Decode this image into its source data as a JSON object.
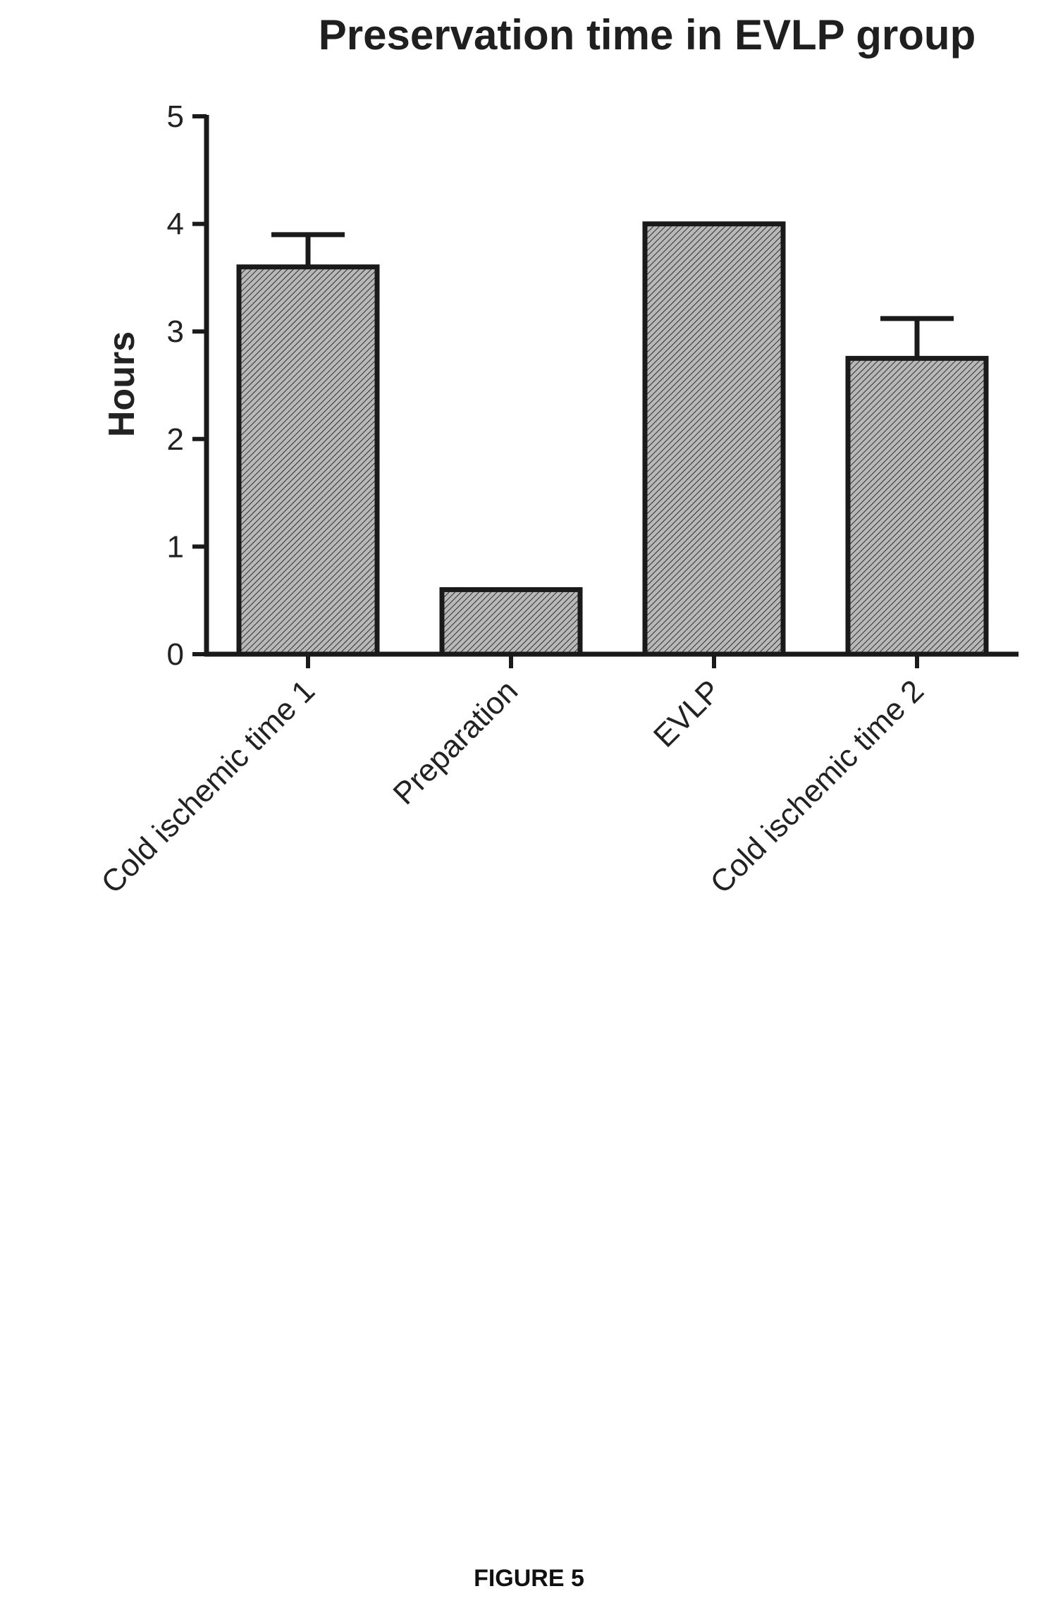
{
  "figure_caption": "FIGURE 5",
  "chart_data": {
    "type": "bar",
    "title": "Preservation time in  EVLP group",
    "ylabel": "Hours",
    "xlabel": "",
    "ylim": [
      0,
      5
    ],
    "yticks": [
      "0",
      "1",
      "2",
      "3",
      "4",
      "5"
    ],
    "categories": [
      "Cold ischemic time 1",
      "Preparation",
      "EVLP",
      "Cold ischemic time 2"
    ],
    "values": [
      3.6,
      0.6,
      4.0,
      2.75
    ],
    "error_upper": [
      3.9,
      null,
      null,
      3.12
    ],
    "fill": "hatched-gray",
    "grid": false,
    "legend": "none"
  }
}
